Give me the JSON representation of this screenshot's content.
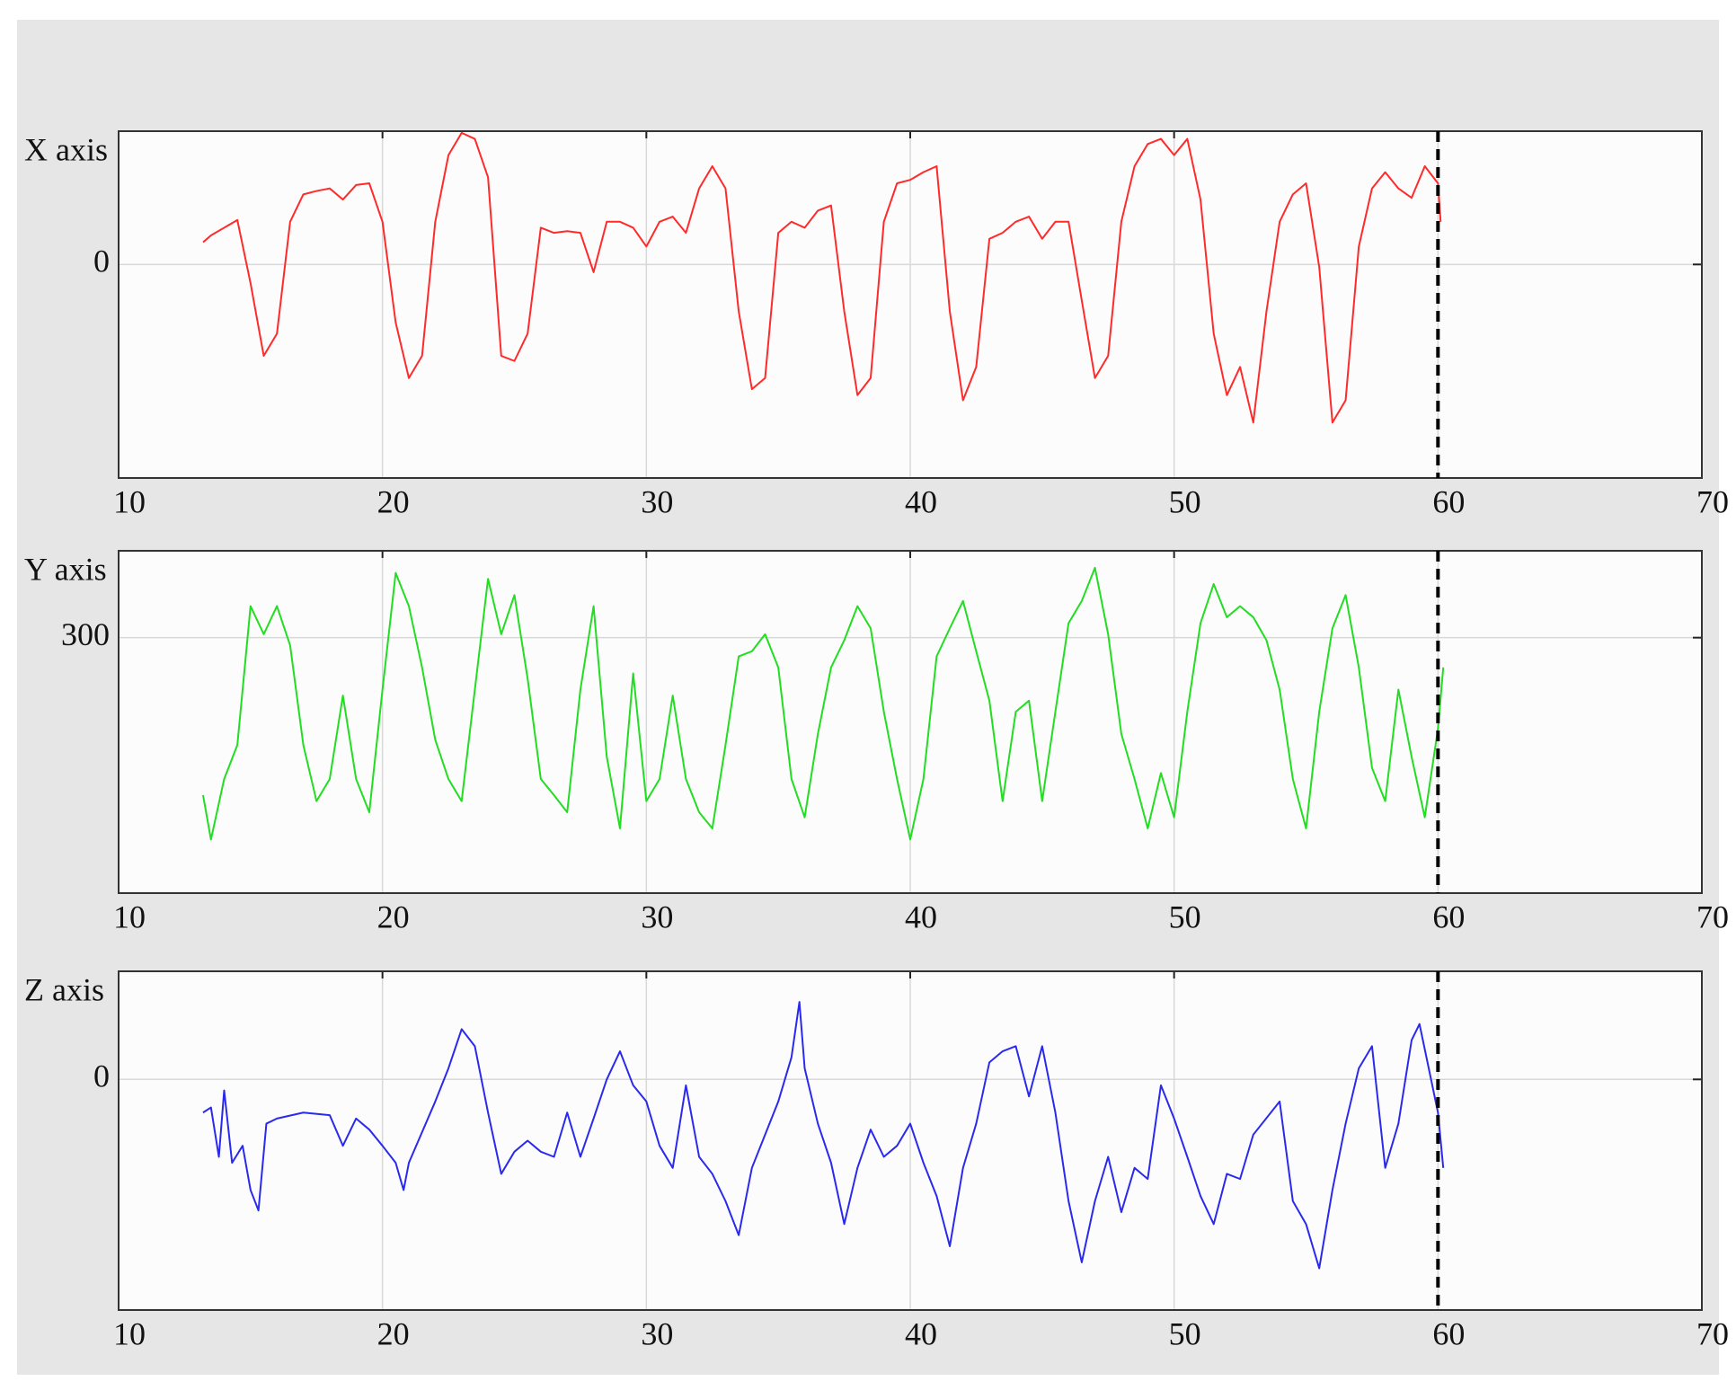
{
  "chart_data": [
    {
      "type": "line",
      "ylabel": "X axis",
      "color": "#ff2a2a",
      "vline": 60,
      "xlim": [
        10,
        70
      ],
      "xticks": [
        10,
        20,
        30,
        40,
        50,
        60,
        70
      ],
      "ylim": [
        -250,
        156
      ],
      "yticks": [
        0
      ],
      "grid": true,
      "x": [
        13.2,
        13.5,
        14,
        14.5,
        15,
        15.5,
        16,
        16.5,
        17,
        17.5,
        18,
        18.5,
        19,
        19.5,
        20,
        20.5,
        21,
        21.5,
        22,
        22.5,
        23,
        23.5,
        24,
        24.5,
        25,
        25.5,
        26,
        26.5,
        27,
        27.5,
        28,
        28.5,
        29,
        29.5,
        30,
        30.5,
        31,
        31.5,
        32,
        32.5,
        33,
        33.5,
        34,
        34.5,
        35,
        35.5,
        36,
        36.5,
        37,
        37.5,
        38,
        38.5,
        39,
        39.5,
        40,
        40.5,
        41,
        41.5,
        42,
        42.5,
        43,
        43.5,
        44,
        44.5,
        45,
        45.5,
        46,
        46.5,
        47,
        47.5,
        48,
        48.5,
        49,
        49.5,
        50,
        50.5,
        51,
        51.5,
        52,
        52.5,
        53,
        53.5,
        54,
        54.5,
        55,
        55.5,
        56,
        56.5,
        57,
        57.5,
        58,
        58.5,
        59,
        59.5,
        60,
        60.1
      ],
      "values": [
        26,
        34,
        43,
        52,
        -22,
        -107,
        -81,
        50,
        82,
        86,
        89,
        76,
        93,
        95,
        50,
        -68,
        -133,
        -107,
        50,
        128,
        154,
        147,
        102,
        -107,
        -113,
        -81,
        43,
        37,
        39,
        37,
        -9,
        50,
        50,
        43,
        21,
        50,
        56,
        37,
        89,
        115,
        89,
        -55,
        -146,
        -133,
        37,
        50,
        43,
        63,
        69,
        -55,
        -153,
        -133,
        50,
        95,
        99,
        108,
        115,
        -55,
        -159,
        -120,
        30,
        37,
        50,
        56,
        30,
        50,
        50,
        -42,
        -133,
        -107,
        50,
        115,
        141,
        147,
        128,
        147,
        76,
        -81,
        -153,
        -120,
        -185,
        -55,
        50,
        82,
        95,
        -3,
        -185,
        -159,
        21,
        89,
        108,
        89,
        78,
        115,
        95,
        50
      ]
    },
    {
      "type": "line",
      "ylabel": "Y axis",
      "color": "#22dd22",
      "vline": 60,
      "xlim": [
        10,
        70
      ],
      "xticks": [
        10,
        20,
        30,
        40,
        50,
        60,
        70
      ],
      "ylim": [
        0,
        402
      ],
      "yticks": [
        300
      ],
      "grid": true,
      "x": [
        13.2,
        13.5,
        14,
        14.5,
        15,
        15.5,
        16,
        16.5,
        17,
        17.5,
        18,
        18.5,
        19,
        19.5,
        20,
        20.5,
        21,
        21.5,
        22,
        22.5,
        23,
        23.5,
        24,
        24.5,
        25,
        25.5,
        26,
        26.5,
        27,
        27.5,
        28,
        28.5,
        29,
        29.5,
        30,
        30.5,
        31,
        31.5,
        32,
        32.5,
        33,
        33.5,
        34,
        34.5,
        35,
        35.5,
        36,
        36.5,
        37,
        37.5,
        38,
        38.5,
        39,
        39.5,
        40,
        40.5,
        41,
        41.5,
        42,
        42.5,
        43,
        43.5,
        44,
        44.5,
        45,
        45.5,
        46,
        46.5,
        47,
        47.5,
        48,
        48.5,
        49,
        49.5,
        50,
        50.5,
        51,
        51.5,
        52,
        52.5,
        53,
        53.5,
        54,
        54.5,
        55,
        55.5,
        56,
        56.5,
        57,
        57.5,
        58,
        58.5,
        59,
        59.5,
        60,
        60.2
      ],
      "values": [
        115,
        63,
        134,
        174,
        337,
        304,
        337,
        291,
        174,
        108,
        134,
        232,
        134,
        95,
        239,
        376,
        337,
        265,
        180,
        134,
        108,
        239,
        369,
        304,
        350,
        252,
        134,
        115,
        95,
        239,
        337,
        160,
        76,
        258,
        108,
        134,
        232,
        134,
        95,
        76,
        174,
        278,
        284,
        304,
        265,
        134,
        89,
        187,
        265,
        297,
        337,
        311,
        213,
        134,
        63,
        134,
        278,
        311,
        343,
        284,
        226,
        108,
        213,
        226,
        108,
        213,
        317,
        343,
        382,
        304,
        187,
        134,
        76,
        141,
        89,
        213,
        317,
        363,
        324,
        337,
        324,
        297,
        239,
        134,
        76,
        213,
        311,
        350,
        265,
        147,
        108,
        239,
        160,
        89,
        193,
        265
      ]
    },
    {
      "type": "line",
      "ylabel": "Z axis",
      "color": "#2a2aee",
      "vline": 60,
      "xlim": [
        10,
        70
      ],
      "xticks": [
        10,
        20,
        30,
        40,
        50,
        60,
        70
      ],
      "ylim": [
        -271,
        127
      ],
      "yticks": [
        0
      ],
      "grid": true,
      "x": [
        13.2,
        13.5,
        13.8,
        14,
        14.3,
        14.7,
        15,
        15.3,
        15.6,
        16,
        17,
        18,
        18.5,
        19,
        19.5,
        20,
        20.5,
        20.8,
        21,
        22,
        22.5,
        23,
        23.5,
        24,
        24.5,
        25,
        25.5,
        26,
        26.5,
        27,
        27.5,
        28,
        28.5,
        29,
        29.5,
        30,
        30.5,
        31,
        31.5,
        32,
        32.5,
        33,
        33.5,
        34,
        35,
        35.5,
        35.8,
        36,
        36.5,
        37,
        37.5,
        38,
        38.5,
        39,
        39.5,
        40,
        40.5,
        41,
        41.5,
        42,
        42.5,
        43,
        43.5,
        44,
        44.5,
        45,
        45.5,
        46,
        46.5,
        47,
        47.5,
        48,
        48.5,
        49,
        49.5,
        50,
        50.5,
        51,
        51.5,
        52,
        52.5,
        53,
        54,
        54.5,
        55,
        55.5,
        56,
        56.5,
        57,
        57.5,
        58,
        58.5,
        59,
        59.3,
        60,
        60.2
      ],
      "values": [
        -39,
        -33,
        -91,
        -13,
        -98,
        -78,
        -130,
        -154,
        -52,
        -46,
        -39,
        -42,
        -78,
        -46,
        -59,
        -78,
        -98,
        -130,
        -98,
        -26,
        13,
        59,
        39,
        -39,
        -111,
        -85,
        -72,
        -85,
        -91,
        -39,
        -91,
        -46,
        0,
        33,
        -7,
        -26,
        -78,
        -104,
        -7,
        -91,
        -111,
        -143,
        -183,
        -104,
        -26,
        26,
        91,
        13,
        -52,
        -98,
        -170,
        -104,
        -59,
        -91,
        -78,
        -52,
        -98,
        -137,
        -196,
        -104,
        -52,
        20,
        33,
        39,
        -20,
        39,
        -39,
        -143,
        -215,
        -143,
        -91,
        -156,
        -104,
        -117,
        -7,
        -46,
        -91,
        -137,
        -170,
        -111,
        -117,
        -65,
        -26,
        -143,
        -170,
        -222,
        -130,
        -52,
        13,
        39,
        -104,
        -52,
        46,
        65,
        -39,
        -104
      ]
    }
  ]
}
